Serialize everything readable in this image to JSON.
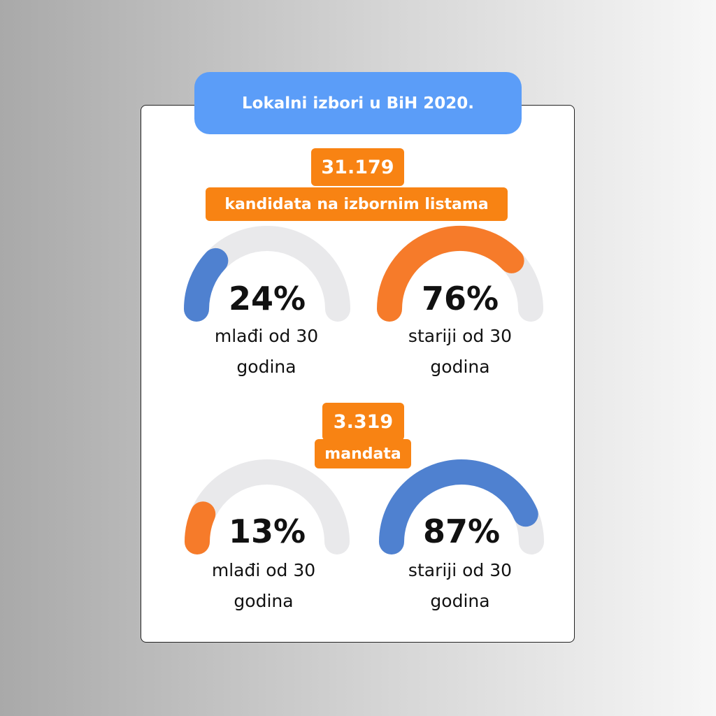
{
  "title": "Lokalni izbori u BiH 2020.",
  "sections": [
    {
      "number": "31.179",
      "subtitle": "kandidata na izbornim listama"
    },
    {
      "number": "3.319",
      "subtitle": "mandata"
    }
  ],
  "chart_data": [
    {
      "type": "gauge",
      "categories": [
        "mlađi od 30 godina",
        "stariji od 30 godina"
      ],
      "values": [
        24,
        76
      ],
      "value_labels": [
        "24%",
        "76%"
      ],
      "label_lines": [
        [
          "mlađi od 30",
          "godina"
        ],
        [
          "stariji od 30",
          "godina"
        ]
      ],
      "colors": [
        "#4f81d0",
        "#f67b2a"
      ]
    },
    {
      "type": "gauge",
      "categories": [
        "mlađi od 30 godina",
        "stariji od 30 godina"
      ],
      "values": [
        13,
        87
      ],
      "value_labels": [
        "13%",
        "87%"
      ],
      "label_lines": [
        [
          "mlađi od 30",
          "godina"
        ],
        [
          "stariji od 30",
          "godina"
        ]
      ],
      "colors": [
        "#f67b2a",
        "#4f81d0"
      ]
    }
  ],
  "colors": {
    "track": "#e9e9eb",
    "badge": "#f88313",
    "title_pill": "#5b9df8"
  }
}
